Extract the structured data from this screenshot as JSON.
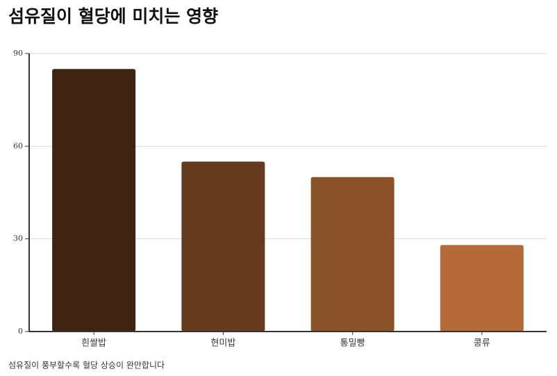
{
  "chart_data": {
    "type": "bar",
    "title": "섬유질이 혈당에 미치는 영향",
    "categories": [
      "흰쌀밥",
      "현미밥",
      "통밀빵",
      "콩류"
    ],
    "values": [
      85,
      55,
      50,
      28
    ],
    "colors": [
      "#3e2312",
      "#653b1f",
      "#8b532a",
      "#b46b39"
    ],
    "ylim": [
      0,
      90
    ],
    "yticks": [
      0,
      30,
      60,
      90
    ],
    "grid": true,
    "note": "섬유질이 풍부할수록 혈당 상승이 완만합니다"
  }
}
